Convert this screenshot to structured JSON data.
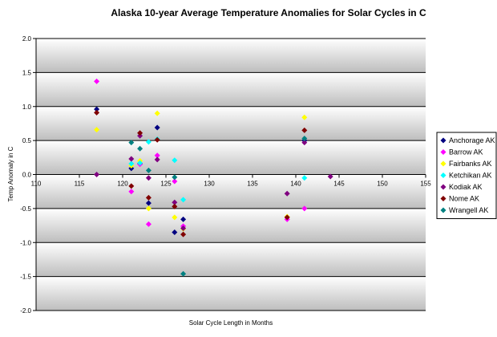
{
  "chart_data": {
    "type": "scatter",
    "title": "Alaska 10-year Average Temperature Anomalies for Solar Cycles in C",
    "xlabel": "Solar Cycle Length in Months",
    "ylabel": "Temp Anomaly in C",
    "xlim": [
      110,
      155
    ],
    "ylim": [
      -2.0,
      2.0
    ],
    "xticks": [
      "110",
      "115",
      "120",
      "125",
      "130",
      "135",
      "140",
      "145",
      "150",
      "155"
    ],
    "yticks": [
      "2.0",
      "1.5",
      "1.0",
      "0.5",
      "0.0",
      "-0.5",
      "-1.0",
      "-1.5",
      "-2.0"
    ],
    "legend_position": "right",
    "series": [
      {
        "name": "Anchorage AK",
        "color": "#000080",
        "points": [
          [
            117,
            0.96
          ],
          [
            121,
            0.09
          ],
          [
            122,
            0.16
          ],
          [
            123,
            -0.42
          ],
          [
            124,
            0.69
          ],
          [
            126,
            -0.85
          ],
          [
            127,
            -0.66
          ],
          [
            141,
            0.5
          ]
        ]
      },
      {
        "name": "Barrow AK",
        "color": "#ff00ff",
        "points": [
          [
            117,
            1.37
          ],
          [
            121,
            -0.25
          ],
          [
            122,
            0.15
          ],
          [
            123,
            -0.73
          ],
          [
            124,
            0.28
          ],
          [
            126,
            -0.1
          ],
          [
            127,
            -0.76
          ],
          [
            139,
            -0.66
          ],
          [
            141,
            -0.5
          ]
        ]
      },
      {
        "name": "Fairbanks AK",
        "color": "#ffff00",
        "points": [
          [
            117,
            0.66
          ],
          [
            121,
            0.13
          ],
          [
            122,
            0.2
          ],
          [
            123,
            -0.5
          ],
          [
            124,
            0.9
          ],
          [
            126,
            -0.63
          ],
          [
            127,
            -0.8
          ],
          [
            139,
            -0.62
          ],
          [
            141,
            0.84
          ]
        ]
      },
      {
        "name": "Ketchikan AK",
        "color": "#00ffff",
        "points": [
          [
            121,
            0.16
          ],
          [
            122,
            0.17
          ],
          [
            123,
            0.48
          ],
          [
            124,
            0.52
          ],
          [
            126,
            0.21
          ],
          [
            127,
            -0.37
          ],
          [
            141,
            -0.05
          ]
        ]
      },
      {
        "name": "Kodiak AK",
        "color": "#800080",
        "points": [
          [
            117,
            0.0
          ],
          [
            121,
            0.23
          ],
          [
            122,
            0.57
          ],
          [
            123,
            -0.05
          ],
          [
            124,
            0.22
          ],
          [
            126,
            -0.41
          ],
          [
            127,
            -0.79
          ],
          [
            139,
            -0.28
          ],
          [
            141,
            0.47
          ],
          [
            144,
            -0.03
          ]
        ]
      },
      {
        "name": "Nome AK",
        "color": "#800000",
        "points": [
          [
            117,
            0.91
          ],
          [
            121,
            -0.17
          ],
          [
            122,
            0.61
          ],
          [
            123,
            -0.34
          ],
          [
            124,
            0.51
          ],
          [
            126,
            -0.47
          ],
          [
            127,
            -0.88
          ],
          [
            139,
            -0.63
          ],
          [
            141,
            0.65
          ]
        ]
      },
      {
        "name": "Wrangell AK",
        "color": "#008080",
        "points": [
          [
            121,
            0.47
          ],
          [
            122,
            0.38
          ],
          [
            123,
            0.06
          ],
          [
            126,
            -0.04
          ],
          [
            127,
            -1.46
          ],
          [
            141,
            0.53
          ]
        ]
      }
    ]
  }
}
